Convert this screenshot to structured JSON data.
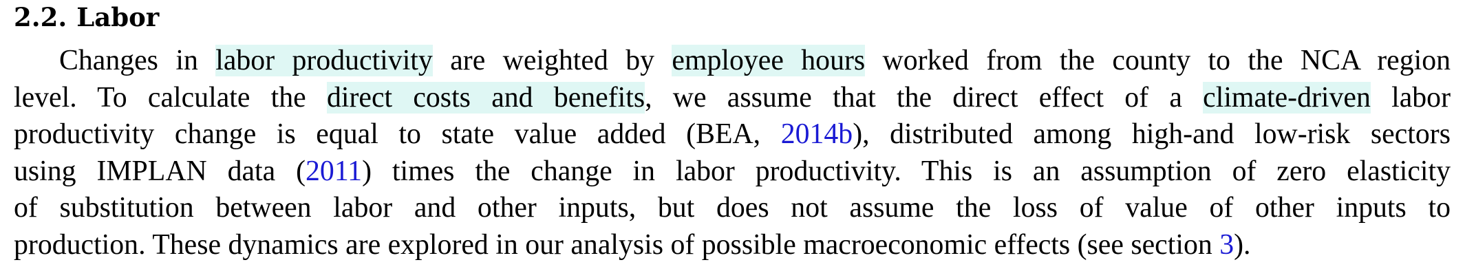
{
  "section": {
    "number": "2.2.",
    "title": "Labor"
  },
  "paragraph": {
    "l1_a": "Changes in ",
    "l1_hl1": "labor productivity",
    "l1_b": " are weighted by ",
    "l1_hl2": "employee hours",
    "l1_c": " worked from the county to the NCA region",
    "l2_a": "level. To calculate the ",
    "l2_hl1": "direct costs and benefits",
    "l2_b": ", we assume that the direct effect of a ",
    "l2_hl2": "climate-driven",
    "l2_c": " labor",
    "l3_a": "productivity change is equal to state value added (BEA, ",
    "l3_ref": "2014b",
    "l3_b": "), distributed among high-and low-risk sectors",
    "l4_a": "using IMPLAN data (",
    "l4_ref": "2011",
    "l4_b": ") times the change in labor productivity. This is an assumption of zero elasticity",
    "l5": "of substitution between labor and other inputs, but does not assume the loss of value of other inputs to",
    "l6_a": "production. These dynamics are explored in our analysis of possible macroeconomic effects (see section ",
    "l6_ref": "3",
    "l6_b": ")."
  },
  "colors": {
    "highlight": "#dff7f4",
    "link": "#1a1ad4"
  }
}
